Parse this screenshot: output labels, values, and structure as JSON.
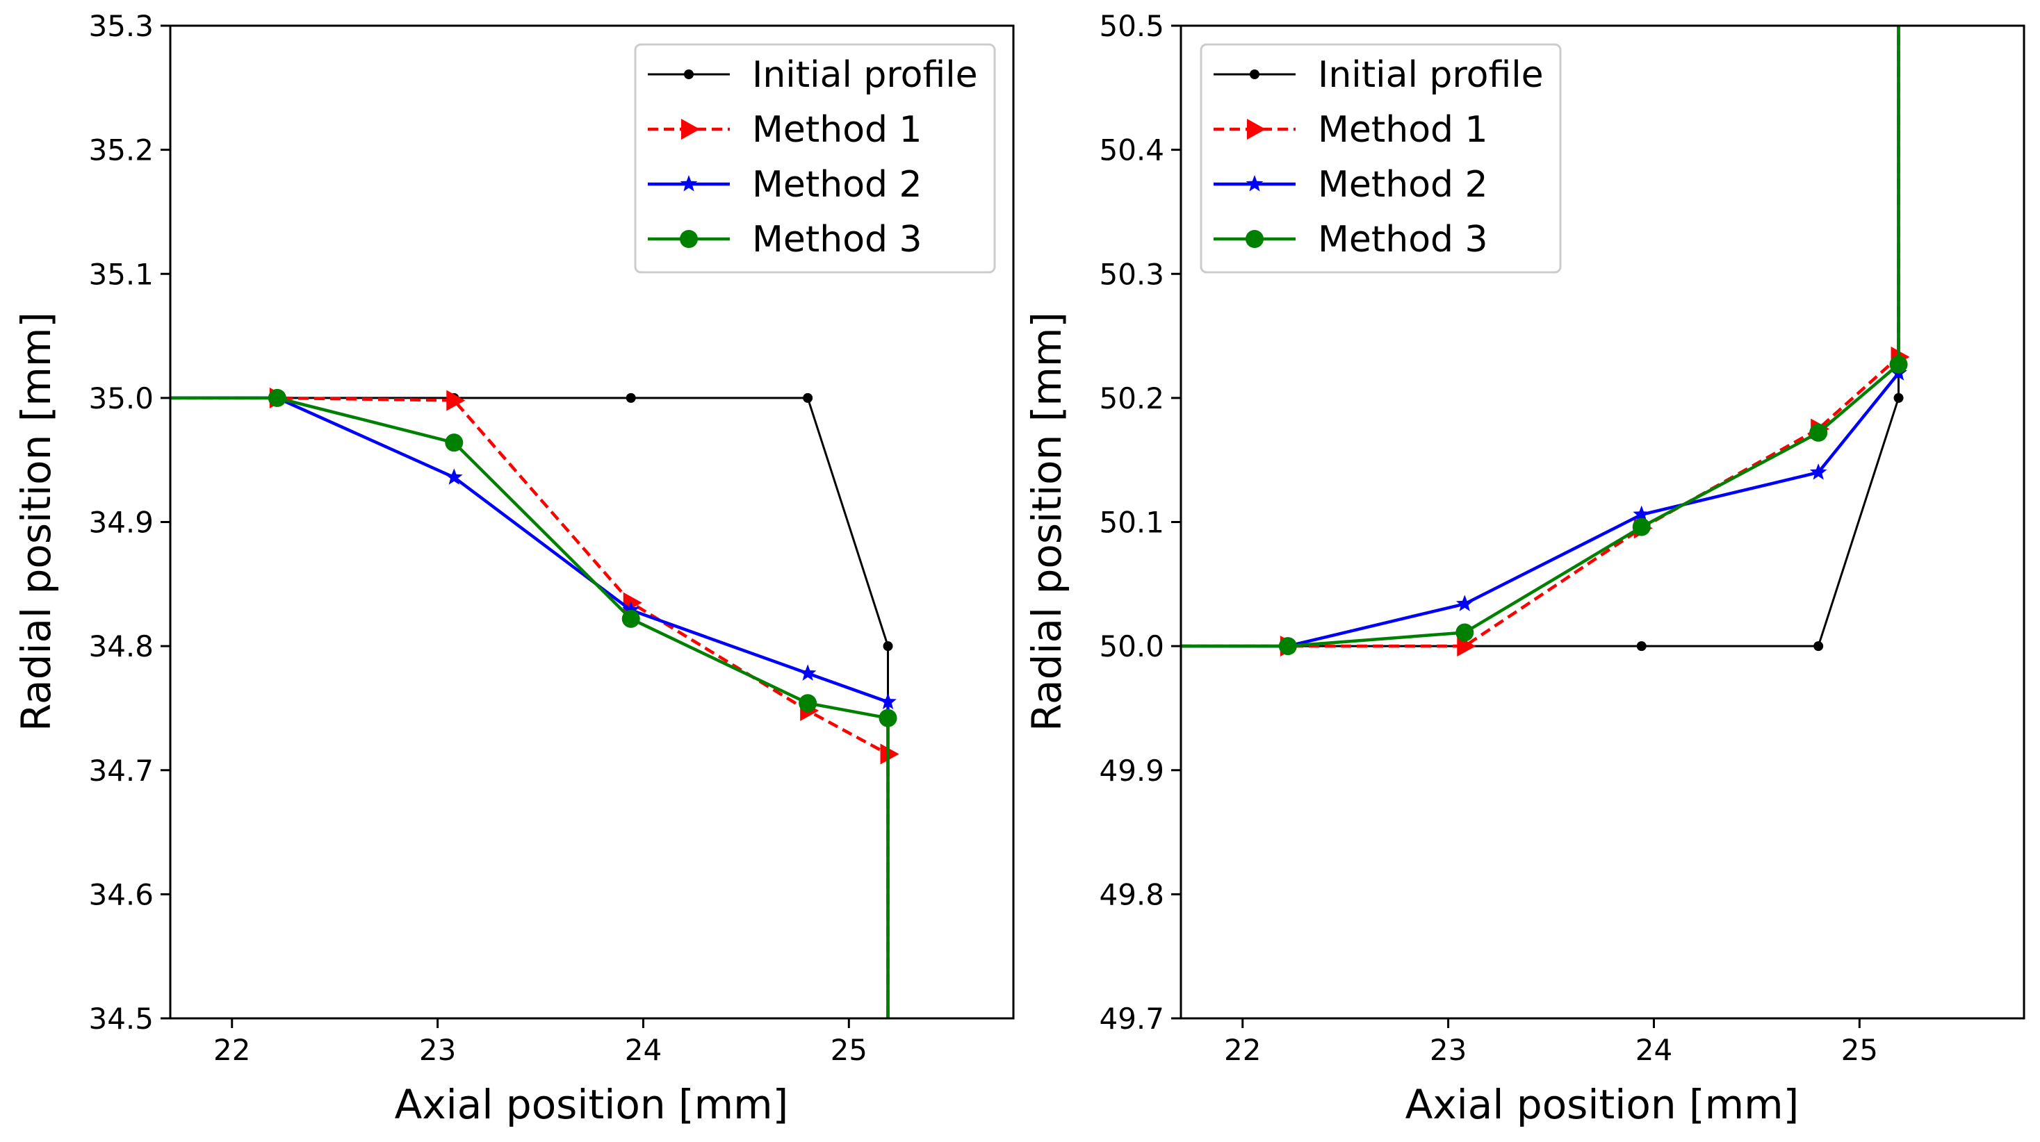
{
  "chart_data": [
    {
      "type": "line",
      "xlabel": "Axial position [mm]",
      "ylabel": "Radial position [mm]",
      "xlim": [
        21.7,
        25.8
      ],
      "ylim": [
        34.5,
        35.3
      ],
      "xticks": [
        22,
        23,
        24,
        25
      ],
      "yticks": [
        34.5,
        34.6,
        34.7,
        34.8,
        34.9,
        35.0,
        35.1,
        35.2,
        35.3
      ],
      "xtick_labels": [
        "22",
        "23",
        "24",
        "25"
      ],
      "ytick_labels": [
        "34.5",
        "34.6",
        "34.7",
        "34.8",
        "34.9",
        "35.0",
        "35.1",
        "35.2",
        "35.3"
      ],
      "grid": false,
      "legend_position": "top-right",
      "series": [
        {
          "name": "Initial profile",
          "color": "#000000",
          "linestyle": "solid",
          "marker": "point",
          "points": [
            [
              21.7,
              35.0
            ],
            [
              22.22,
              35.0
            ],
            [
              23.08,
              35.0
            ],
            [
              23.94,
              35.0
            ],
            [
              24.8,
              35.0
            ],
            [
              25.19,
              34.8
            ],
            [
              25.19,
              34.5
            ]
          ]
        },
        {
          "name": "Method 1",
          "color": "#ff0000",
          "linestyle": "dashed",
          "marker": "triangle-right",
          "points": [
            [
              21.7,
              35.0
            ],
            [
              22.22,
              35.0
            ],
            [
              23.08,
              34.998
            ],
            [
              23.94,
              34.835
            ],
            [
              24.8,
              34.748
            ],
            [
              25.19,
              34.713
            ],
            [
              25.19,
              34.5
            ]
          ]
        },
        {
          "name": "Method 2",
          "color": "#0000ff",
          "linestyle": "solid",
          "marker": "star",
          "points": [
            [
              21.7,
              35.0
            ],
            [
              22.22,
              35.0
            ],
            [
              23.08,
              34.936
            ],
            [
              23.94,
              34.829
            ],
            [
              24.8,
              34.778
            ],
            [
              25.19,
              34.755
            ],
            [
              25.19,
              34.5
            ]
          ]
        },
        {
          "name": "Method 3",
          "color": "#008000",
          "linestyle": "solid",
          "marker": "circle",
          "points": [
            [
              21.7,
              35.0
            ],
            [
              22.22,
              35.0
            ],
            [
              23.08,
              34.964
            ],
            [
              23.94,
              34.822
            ],
            [
              24.8,
              34.754
            ],
            [
              25.19,
              34.742
            ],
            [
              25.19,
              34.5
            ]
          ]
        }
      ]
    },
    {
      "type": "line",
      "xlabel": "Axial position [mm]",
      "ylabel": "Radial position [mm]",
      "xlim": [
        21.7,
        25.8
      ],
      "ylim": [
        49.7,
        50.5
      ],
      "xticks": [
        22,
        23,
        24,
        25
      ],
      "yticks": [
        49.7,
        49.8,
        49.9,
        50.0,
        50.1,
        50.2,
        50.3,
        50.4,
        50.5
      ],
      "xtick_labels": [
        "22",
        "23",
        "24",
        "25"
      ],
      "ytick_labels": [
        "49.7",
        "49.8",
        "49.9",
        "50.0",
        "50.1",
        "50.2",
        "50.3",
        "50.4",
        "50.5"
      ],
      "grid": false,
      "legend_position": "top-left",
      "series": [
        {
          "name": "Initial profile",
          "color": "#000000",
          "linestyle": "solid",
          "marker": "point",
          "points": [
            [
              21.7,
              50.0
            ],
            [
              22.22,
              50.0
            ],
            [
              23.08,
              50.0
            ],
            [
              23.94,
              50.0
            ],
            [
              24.8,
              50.0
            ],
            [
              25.19,
              50.2
            ],
            [
              25.19,
              50.5
            ]
          ]
        },
        {
          "name": "Method 1",
          "color": "#ff0000",
          "linestyle": "dashed",
          "marker": "triangle-right",
          "points": [
            [
              21.7,
              50.0
            ],
            [
              22.22,
              50.0
            ],
            [
              23.08,
              50.0
            ],
            [
              23.94,
              50.095
            ],
            [
              24.8,
              50.175
            ],
            [
              25.19,
              50.233
            ],
            [
              25.19,
              50.5
            ]
          ]
        },
        {
          "name": "Method 2",
          "color": "#0000ff",
          "linestyle": "solid",
          "marker": "star",
          "points": [
            [
              21.7,
              50.0
            ],
            [
              22.22,
              50.0
            ],
            [
              23.08,
              50.034
            ],
            [
              23.94,
              50.106
            ],
            [
              24.8,
              50.14
            ],
            [
              25.19,
              50.22
            ],
            [
              25.19,
              50.5
            ]
          ]
        },
        {
          "name": "Method 3",
          "color": "#008000",
          "linestyle": "solid",
          "marker": "circle",
          "points": [
            [
              21.7,
              50.0
            ],
            [
              22.22,
              50.0
            ],
            [
              23.08,
              50.011
            ],
            [
              23.94,
              50.096
            ],
            [
              24.8,
              50.172
            ],
            [
              25.19,
              50.227
            ],
            [
              25.19,
              50.5
            ]
          ]
        }
      ]
    }
  ]
}
